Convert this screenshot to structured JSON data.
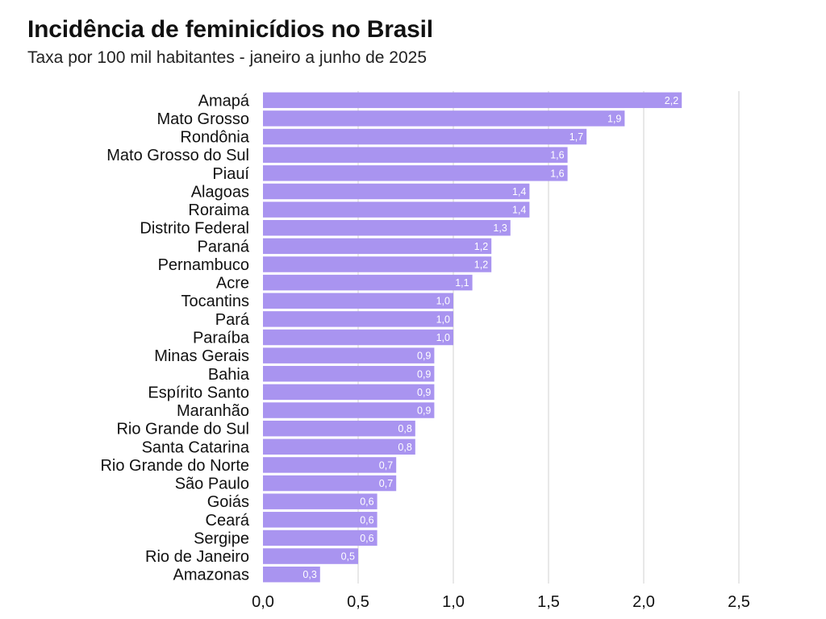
{
  "header": {
    "title": "Incidência de feminicídios no Brasil",
    "subtitle": "Taxa por 100 mil habitantes - janeiro a junho de 2025"
  },
  "colors": {
    "bar": "#a994f0",
    "grid": "#d0d0d0"
  },
  "chart_data": {
    "type": "bar",
    "orientation": "horizontal",
    "title": "Incidência de feminicídios no Brasil",
    "subtitle": "Taxa por 100 mil habitantes - janeiro a junho de 2025",
    "categories": [
      "Amapá",
      "Mato Grosso",
      "Rondônia",
      "Mato Grosso do Sul",
      "Piauí",
      "Alagoas",
      "Roraima",
      "Distrito Federal",
      "Paraná",
      "Pernambuco",
      "Acre",
      "Tocantins",
      "Pará",
      "Paraíba",
      "Minas Gerais",
      "Bahia",
      "Espírito Santo",
      "Maranhão",
      "Rio Grande do Sul",
      "Santa Catarina",
      "Rio Grande do Norte",
      "São Paulo",
      "Goiás",
      "Ceará",
      "Sergipe",
      "Rio de Janeiro",
      "Amazonas"
    ],
    "values": [
      2.2,
      1.9,
      1.7,
      1.6,
      1.6,
      1.4,
      1.4,
      1.3,
      1.2,
      1.2,
      1.1,
      1.0,
      1.0,
      1.0,
      0.9,
      0.9,
      0.9,
      0.9,
      0.8,
      0.8,
      0.7,
      0.7,
      0.6,
      0.6,
      0.6,
      0.5,
      0.3
    ],
    "value_labels": [
      "2,2",
      "1,9",
      "1,7",
      "1,6",
      "1,6",
      "1,4",
      "1,4",
      "1,3",
      "1,2",
      "1,2",
      "1,1",
      "1,0",
      "1,0",
      "1,0",
      "0,9",
      "0,9",
      "0,9",
      "0,9",
      "0,8",
      "0,8",
      "0,7",
      "0,7",
      "0,6",
      "0,6",
      "0,6",
      "0,5",
      "0,3"
    ],
    "xlim": [
      0,
      2.5
    ],
    "xticks": [
      0,
      0.5,
      1.0,
      1.5,
      2.0,
      2.5
    ],
    "xtick_labels": [
      "0,0",
      "0,5",
      "1,0",
      "1,5",
      "2,0",
      "2,5"
    ],
    "grid": "vertical"
  }
}
